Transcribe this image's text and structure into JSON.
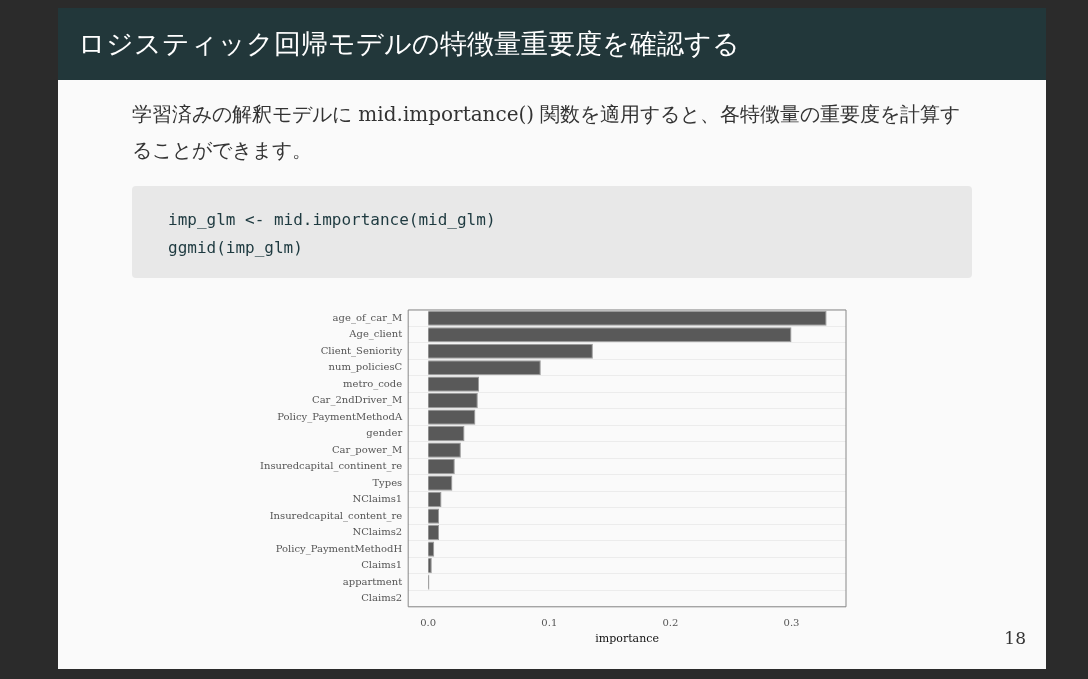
{
  "chart_data": {
    "type": "bar",
    "orientation": "horizontal",
    "title": "ロジスティック回帰モデルの特徴量重要度を確認する",
    "subtitle": "学習済みの解釈モデルに mid.importance() 関数を適用すると、各特徴量の重要度を計算することができます。",
    "annotations": [
      "imp_glm <- mid.importance(mid_glm)",
      "ggmid(imp_glm)",
      "18"
    ],
    "categories": [
      "age_of_car_M",
      "Age_client",
      "Client_Seniority",
      "num_policiesC",
      "metro_code",
      "Car_2ndDriver_M",
      "Policy_PaymentMethodA",
      "gender",
      "Car_power_M",
      "Insuredcapital_continent_re",
      "Types",
      "NClaims1",
      "Insuredcapital_content_re",
      "NClaims2",
      "Policy_PaymentMethodH",
      "Claims1",
      "appartment",
      "Claims2"
    ],
    "values": [
      0.329,
      0.3,
      0.136,
      0.093,
      0.042,
      0.041,
      0.039,
      0.03,
      0.027,
      0.022,
      0.02,
      0.011,
      0.009,
      0.009,
      0.005,
      0.003,
      0.001,
      0
    ],
    "color": "#595959",
    "xlabel": "importance",
    "xlim": [
      -0.0165,
      0.345
    ],
    "xticks": [
      {
        "value": 0,
        "label": "0.0"
      },
      0.1,
      0.2,
      0.3
    ],
    "grid": "y"
  }
}
